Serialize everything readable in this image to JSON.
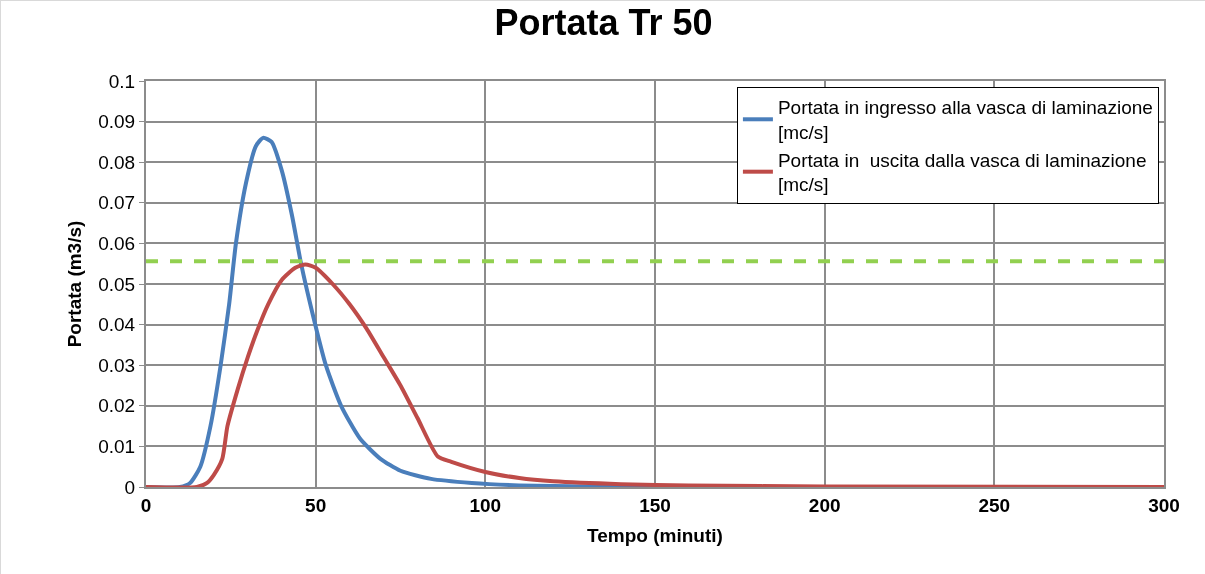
{
  "chart_data": {
    "type": "line",
    "title": "Portata Tr 50",
    "xlabel": "Tempo (minuti)",
    "ylabel": "Portata (m3/s)",
    "xlim": [
      0,
      300
    ],
    "xticks": [
      0,
      50,
      100,
      150,
      200,
      250,
      300
    ],
    "ylim": [
      0,
      0.1
    ],
    "yticks": [
      0,
      0.01,
      0.02,
      0.03,
      0.04,
      0.05,
      0.06,
      0.07,
      0.08,
      0.09,
      0.1
    ],
    "grid": true,
    "legend": "top right",
    "marker": "none",
    "line_style": "solid",
    "series": [
      {
        "name": "Portata in ingresso alla vasca di laminazione [mc/s]",
        "color": "#4a7ebb",
        "x": [
          0,
          10,
          13,
          16,
          19,
          22,
          24.5,
          26.5,
          29.5,
          32.4,
          34.5,
          37,
          40,
          43,
          45.7,
          49,
          53,
          57.5,
          63,
          69,
          75,
          84,
          96,
          110,
          130,
          150,
          200,
          300
        ],
        "values": [
          0,
          0,
          0.001,
          0.005,
          0.015,
          0.03,
          0.045,
          0.06,
          0.075,
          0.084,
          0.086,
          0.085,
          0.078,
          0.067,
          0.055,
          0.043,
          0.03,
          0.02,
          0.012,
          0.007,
          0.004,
          0.002,
          0.001,
          0.0004,
          0.0001,
          0,
          0,
          0
        ]
      },
      {
        "name": "Portata in  uscita dalla vasca di laminazione [mc/s]",
        "color": "#be4b48",
        "x": [
          0,
          15,
          18,
          20,
          22.5,
          24,
          27,
          30,
          33,
          36,
          40,
          44,
          47,
          50,
          55,
          60,
          65,
          70,
          75,
          80,
          86,
          90,
          100,
          110,
          120,
          140,
          160,
          200,
          300
        ],
        "values": [
          0,
          0,
          0.001,
          0.003,
          0.007,
          0.015,
          0.024,
          0.032,
          0.039,
          0.045,
          0.051,
          0.054,
          0.0548,
          0.054,
          0.05,
          0.045,
          0.039,
          0.032,
          0.025,
          0.017,
          0.0075,
          0.0062,
          0.0037,
          0.0022,
          0.0014,
          0.0007,
          0.0004,
          0.0001,
          0
        ]
      }
    ],
    "ref_lines": [
      {
        "axis": "y",
        "value": 0.0556,
        "color": "#92d050",
        "line_style": "dashed"
      }
    ]
  }
}
